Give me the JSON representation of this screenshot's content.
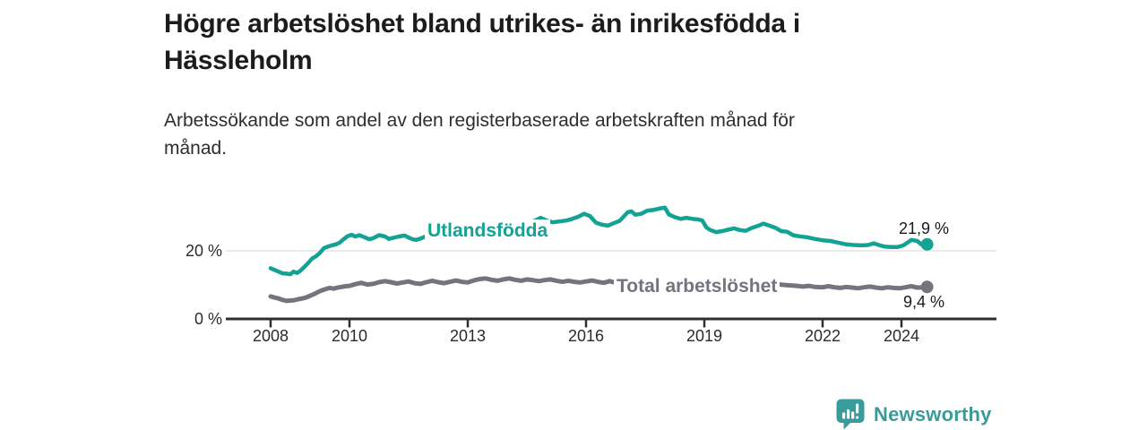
{
  "header": {
    "title_lines": [
      "Högre arbetslöshet bland utrikes- än inrikesfödda i",
      "Hässleholm"
    ],
    "subtitle_lines": [
      "Arbetssökande som andel av den registerbaserade arbetskraften månad för",
      "månad."
    ]
  },
  "chart_data": {
    "type": "line",
    "title": "Högre arbetslöshet bland utrikes- än inrikesfödda i Hässleholm",
    "subtitle": "Arbetssökande som andel av den registerbaserade arbetskraften månad för månad.",
    "unit": "%",
    "xlabel": "",
    "ylabel": "",
    "x_range": [
      2008,
      2024.65
    ],
    "ylim": [
      0,
      34
    ],
    "grid": "single horizontal gridline at 20%",
    "legend_position": "inline labels on lines",
    "yticks": [
      {
        "value": 20,
        "label": "20 %"
      },
      {
        "value": 0,
        "label": "0 %"
      }
    ],
    "xticks": [
      {
        "year": 2008,
        "label": "2008"
      },
      {
        "year": 2010,
        "label": "2010"
      },
      {
        "year": 2013,
        "label": "2013"
      },
      {
        "year": 2016,
        "label": "2016"
      },
      {
        "year": 2019,
        "label": "2019"
      },
      {
        "year": 2022,
        "label": "2022"
      },
      {
        "year": 2024,
        "label": "2024"
      }
    ],
    "series": [
      {
        "name": "Utlandsfödda",
        "color": "#14a294",
        "end_value": 21.9,
        "end_label": "21,9 %",
        "points": [
          [
            2008,
            14.9
          ],
          [
            2008.1,
            14.4
          ],
          [
            2008.2,
            13.9
          ],
          [
            2008.3,
            13.4
          ],
          [
            2008.42,
            13.3
          ],
          [
            2008.5,
            13.1
          ],
          [
            2008.58,
            13.9
          ],
          [
            2008.67,
            13.5
          ],
          [
            2008.75,
            14.1
          ],
          [
            2008.85,
            15.2
          ],
          [
            2008.95,
            16.4
          ],
          [
            2009.05,
            17.7
          ],
          [
            2009.15,
            18.4
          ],
          [
            2009.25,
            19.4
          ],
          [
            2009.35,
            20.8
          ],
          [
            2009.45,
            21.2
          ],
          [
            2009.55,
            21.6
          ],
          [
            2009.65,
            21.9
          ],
          [
            2009.75,
            22.4
          ],
          [
            2009.85,
            23.4
          ],
          [
            2009.95,
            24.3
          ],
          [
            2010.05,
            24.7
          ],
          [
            2010.15,
            24.2
          ],
          [
            2010.25,
            24.6
          ],
          [
            2010.4,
            23.9
          ],
          [
            2010.5,
            23.4
          ],
          [
            2010.6,
            23.7
          ],
          [
            2010.75,
            24.6
          ],
          [
            2010.9,
            24.2
          ],
          [
            2011,
            23.5
          ],
          [
            2011.1,
            23.8
          ],
          [
            2011.25,
            24.2
          ],
          [
            2011.4,
            24.5
          ],
          [
            2011.5,
            23.9
          ],
          [
            2011.6,
            23.4
          ],
          [
            2011.7,
            23.2
          ],
          [
            2011.8,
            23.6
          ],
          [
            2011.9,
            24.1
          ],
          [
            2012.2,
            24.5
          ],
          [
            2012.5,
            24.9
          ],
          [
            2012.8,
            25.4
          ],
          [
            2013.1,
            25.8
          ],
          [
            2013.4,
            26.3
          ],
          [
            2013.7,
            26.8
          ],
          [
            2014,
            27.3
          ],
          [
            2014.3,
            27.8
          ],
          [
            2014.6,
            28.3
          ],
          [
            2014.85,
            29.7
          ],
          [
            2015,
            28.9
          ],
          [
            2015.15,
            28.4
          ],
          [
            2015.3,
            28.6
          ],
          [
            2015.5,
            28.9
          ],
          [
            2015.65,
            29.4
          ],
          [
            2015.8,
            30.0
          ],
          [
            2015.95,
            30.9
          ],
          [
            2016.1,
            30.2
          ],
          [
            2016.25,
            28.3
          ],
          [
            2016.4,
            27.7
          ],
          [
            2016.55,
            27.4
          ],
          [
            2016.7,
            28.1
          ],
          [
            2016.85,
            28.8
          ],
          [
            2016.95,
            30.0
          ],
          [
            2017.05,
            31.3
          ],
          [
            2017.15,
            31.6
          ],
          [
            2017.25,
            30.6
          ],
          [
            2017.4,
            30.9
          ],
          [
            2017.55,
            31.8
          ],
          [
            2017.7,
            32.0
          ],
          [
            2017.85,
            32.4
          ],
          [
            2018,
            32.7
          ],
          [
            2018.1,
            30.7
          ],
          [
            2018.25,
            29.9
          ],
          [
            2018.4,
            29.4
          ],
          [
            2018.55,
            29.7
          ],
          [
            2018.7,
            29.4
          ],
          [
            2018.85,
            29.2
          ],
          [
            2018.95,
            28.9
          ],
          [
            2019.05,
            26.9
          ],
          [
            2019.15,
            26.1
          ],
          [
            2019.3,
            25.5
          ],
          [
            2019.45,
            25.8
          ],
          [
            2019.6,
            26.2
          ],
          [
            2019.75,
            26.6
          ],
          [
            2019.9,
            26.1
          ],
          [
            2020.05,
            25.9
          ],
          [
            2020.2,
            26.7
          ],
          [
            2020.35,
            27.3
          ],
          [
            2020.5,
            28.0
          ],
          [
            2020.65,
            27.4
          ],
          [
            2020.8,
            26.8
          ],
          [
            2020.95,
            25.8
          ],
          [
            2021.1,
            25.6
          ],
          [
            2021.25,
            24.6
          ],
          [
            2021.4,
            24.3
          ],
          [
            2021.6,
            24.0
          ],
          [
            2021.8,
            23.5
          ],
          [
            2022,
            23.1
          ],
          [
            2022.2,
            22.9
          ],
          [
            2022.4,
            22.4
          ],
          [
            2022.6,
            21.9
          ],
          [
            2022.8,
            21.7
          ],
          [
            2023,
            21.6
          ],
          [
            2023.15,
            21.7
          ],
          [
            2023.3,
            22.2
          ],
          [
            2023.45,
            21.6
          ],
          [
            2023.6,
            21.2
          ],
          [
            2023.75,
            21.1
          ],
          [
            2023.9,
            21.1
          ],
          [
            2024.05,
            21.6
          ],
          [
            2024.15,
            22.4
          ],
          [
            2024.25,
            23.2
          ],
          [
            2024.4,
            22.9
          ],
          [
            2024.5,
            21.9
          ],
          [
            2024.65,
            21.9
          ]
        ]
      },
      {
        "name": "Total arbetslöshet",
        "color": "#75737d",
        "end_value": 9.4,
        "end_label": "9,4 %",
        "points": [
          [
            2008,
            6.6
          ],
          [
            2008.1,
            6.3
          ],
          [
            2008.2,
            6.0
          ],
          [
            2008.3,
            5.6
          ],
          [
            2008.4,
            5.3
          ],
          [
            2008.5,
            5.4
          ],
          [
            2008.6,
            5.5
          ],
          [
            2008.7,
            5.8
          ],
          [
            2008.8,
            6.0
          ],
          [
            2008.9,
            6.3
          ],
          [
            2009,
            6.8
          ],
          [
            2009.1,
            7.3
          ],
          [
            2009.2,
            7.9
          ],
          [
            2009.3,
            8.4
          ],
          [
            2009.4,
            8.8
          ],
          [
            2009.5,
            9.1
          ],
          [
            2009.6,
            8.9
          ],
          [
            2009.7,
            9.2
          ],
          [
            2009.8,
            9.4
          ],
          [
            2009.9,
            9.6
          ],
          [
            2010,
            9.7
          ],
          [
            2010.15,
            10.2
          ],
          [
            2010.3,
            10.6
          ],
          [
            2010.45,
            10.1
          ],
          [
            2010.6,
            10.3
          ],
          [
            2010.75,
            10.8
          ],
          [
            2010.9,
            11.1
          ],
          [
            2011.05,
            10.8
          ],
          [
            2011.2,
            10.4
          ],
          [
            2011.35,
            10.7
          ],
          [
            2011.5,
            11.0
          ],
          [
            2011.65,
            10.5
          ],
          [
            2011.8,
            10.3
          ],
          [
            2011.95,
            10.8
          ],
          [
            2012.1,
            11.2
          ],
          [
            2012.25,
            10.8
          ],
          [
            2012.4,
            10.5
          ],
          [
            2012.55,
            10.9
          ],
          [
            2012.7,
            11.3
          ],
          [
            2012.85,
            10.9
          ],
          [
            2013,
            10.7
          ],
          [
            2013.15,
            11.3
          ],
          [
            2013.3,
            11.7
          ],
          [
            2013.45,
            11.9
          ],
          [
            2013.6,
            11.5
          ],
          [
            2013.75,
            11.2
          ],
          [
            2013.9,
            11.6
          ],
          [
            2014.05,
            11.9
          ],
          [
            2014.2,
            11.5
          ],
          [
            2014.35,
            11.2
          ],
          [
            2014.5,
            11.6
          ],
          [
            2014.65,
            11.4
          ],
          [
            2014.8,
            11.1
          ],
          [
            2014.95,
            11.4
          ],
          [
            2015.1,
            11.6
          ],
          [
            2015.25,
            11.2
          ],
          [
            2015.4,
            10.9
          ],
          [
            2015.55,
            11.2
          ],
          [
            2015.7,
            10.9
          ],
          [
            2015.85,
            10.7
          ],
          [
            2016,
            11.0
          ],
          [
            2016.15,
            11.3
          ],
          [
            2016.3,
            10.9
          ],
          [
            2016.45,
            10.6
          ],
          [
            2016.6,
            11.1
          ],
          [
            2016.75,
            10.6
          ],
          [
            2016.9,
            10.2
          ],
          [
            2017.05,
            10.1
          ],
          [
            2017.2,
            10.3
          ],
          [
            2017.5,
            10.2
          ],
          [
            2018,
            10.4
          ],
          [
            2018.5,
            10.2
          ],
          [
            2019,
            9.9
          ],
          [
            2019.5,
            9.8
          ],
          [
            2020,
            10.3
          ],
          [
            2020.5,
            10.7
          ],
          [
            2021,
            10.0
          ],
          [
            2021.35,
            9.7
          ],
          [
            2021.5,
            9.5
          ],
          [
            2021.65,
            9.7
          ],
          [
            2021.8,
            9.4
          ],
          [
            2022,
            9.3
          ],
          [
            2022.15,
            9.6
          ],
          [
            2022.3,
            9.3
          ],
          [
            2022.45,
            9.1
          ],
          [
            2022.6,
            9.4
          ],
          [
            2022.75,
            9.2
          ],
          [
            2022.9,
            9.0
          ],
          [
            2023.05,
            9.3
          ],
          [
            2023.2,
            9.5
          ],
          [
            2023.35,
            9.2
          ],
          [
            2023.5,
            9.0
          ],
          [
            2023.65,
            9.3
          ],
          [
            2023.8,
            9.1
          ],
          [
            2023.95,
            9.0
          ],
          [
            2024.1,
            9.3
          ],
          [
            2024.25,
            9.6
          ],
          [
            2024.4,
            9.2
          ],
          [
            2024.55,
            9.3
          ],
          [
            2024.65,
            9.4
          ]
        ]
      }
    ]
  },
  "footer": {
    "brand": "Newsworthy",
    "logo_icon": "bar-chart-speech-bubble-icon"
  },
  "colors": {
    "accent_teal": "#14a294",
    "line_gray": "#75737d",
    "logo_teal": "#3b9b9a",
    "gridline": "#e3e3e3",
    "axis": "#2f2f2f",
    "text_dark": "#1a1a1a"
  }
}
